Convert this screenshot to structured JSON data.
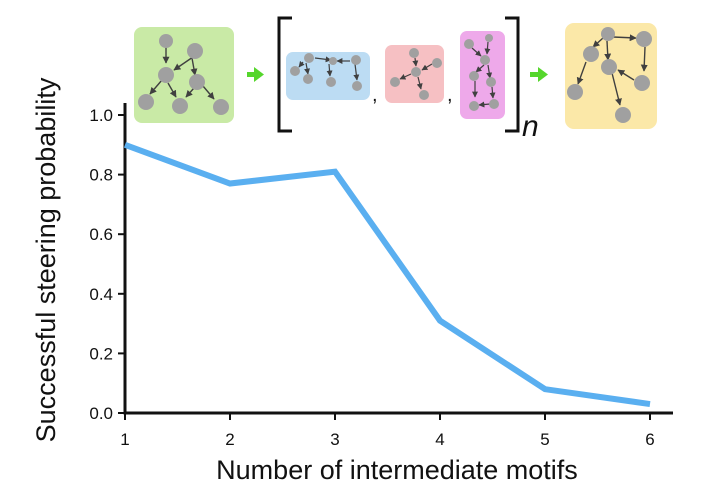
{
  "chart_data": {
    "type": "line",
    "x": [
      1,
      2,
      3,
      4,
      5,
      6
    ],
    "series": [
      {
        "values": [
          0.9,
          0.77,
          0.81,
          0.31,
          0.08,
          0.03
        ],
        "color": "#5aaff0"
      }
    ],
    "xlabel": "Number of intermediate motifs",
    "ylabel": "Successful steering probability",
    "xlim": [
      1,
      6
    ],
    "ylim": [
      0.0,
      1.0
    ],
    "xticks": [
      "1",
      "2",
      "3",
      "4",
      "5",
      "6"
    ],
    "yticks": [
      "0.0",
      "0.2",
      "0.4",
      "0.6",
      "0.8",
      "1.0"
    ],
    "grid": false
  },
  "schematic": {
    "repeat_label": "n",
    "separator": ",",
    "colors": {
      "start_motif": "#c9eaa6",
      "intermediate_1": "#bcdcf3",
      "intermediate_2": "#f6c0c3",
      "intermediate_3": "#eea9ea",
      "target_motif": "#fbe8a8",
      "arrow": "#55d62c",
      "node": "#a0a0a0"
    },
    "icons": [
      "graph-motif-icon",
      "right-arrow-icon",
      "bracket-icon"
    ]
  }
}
